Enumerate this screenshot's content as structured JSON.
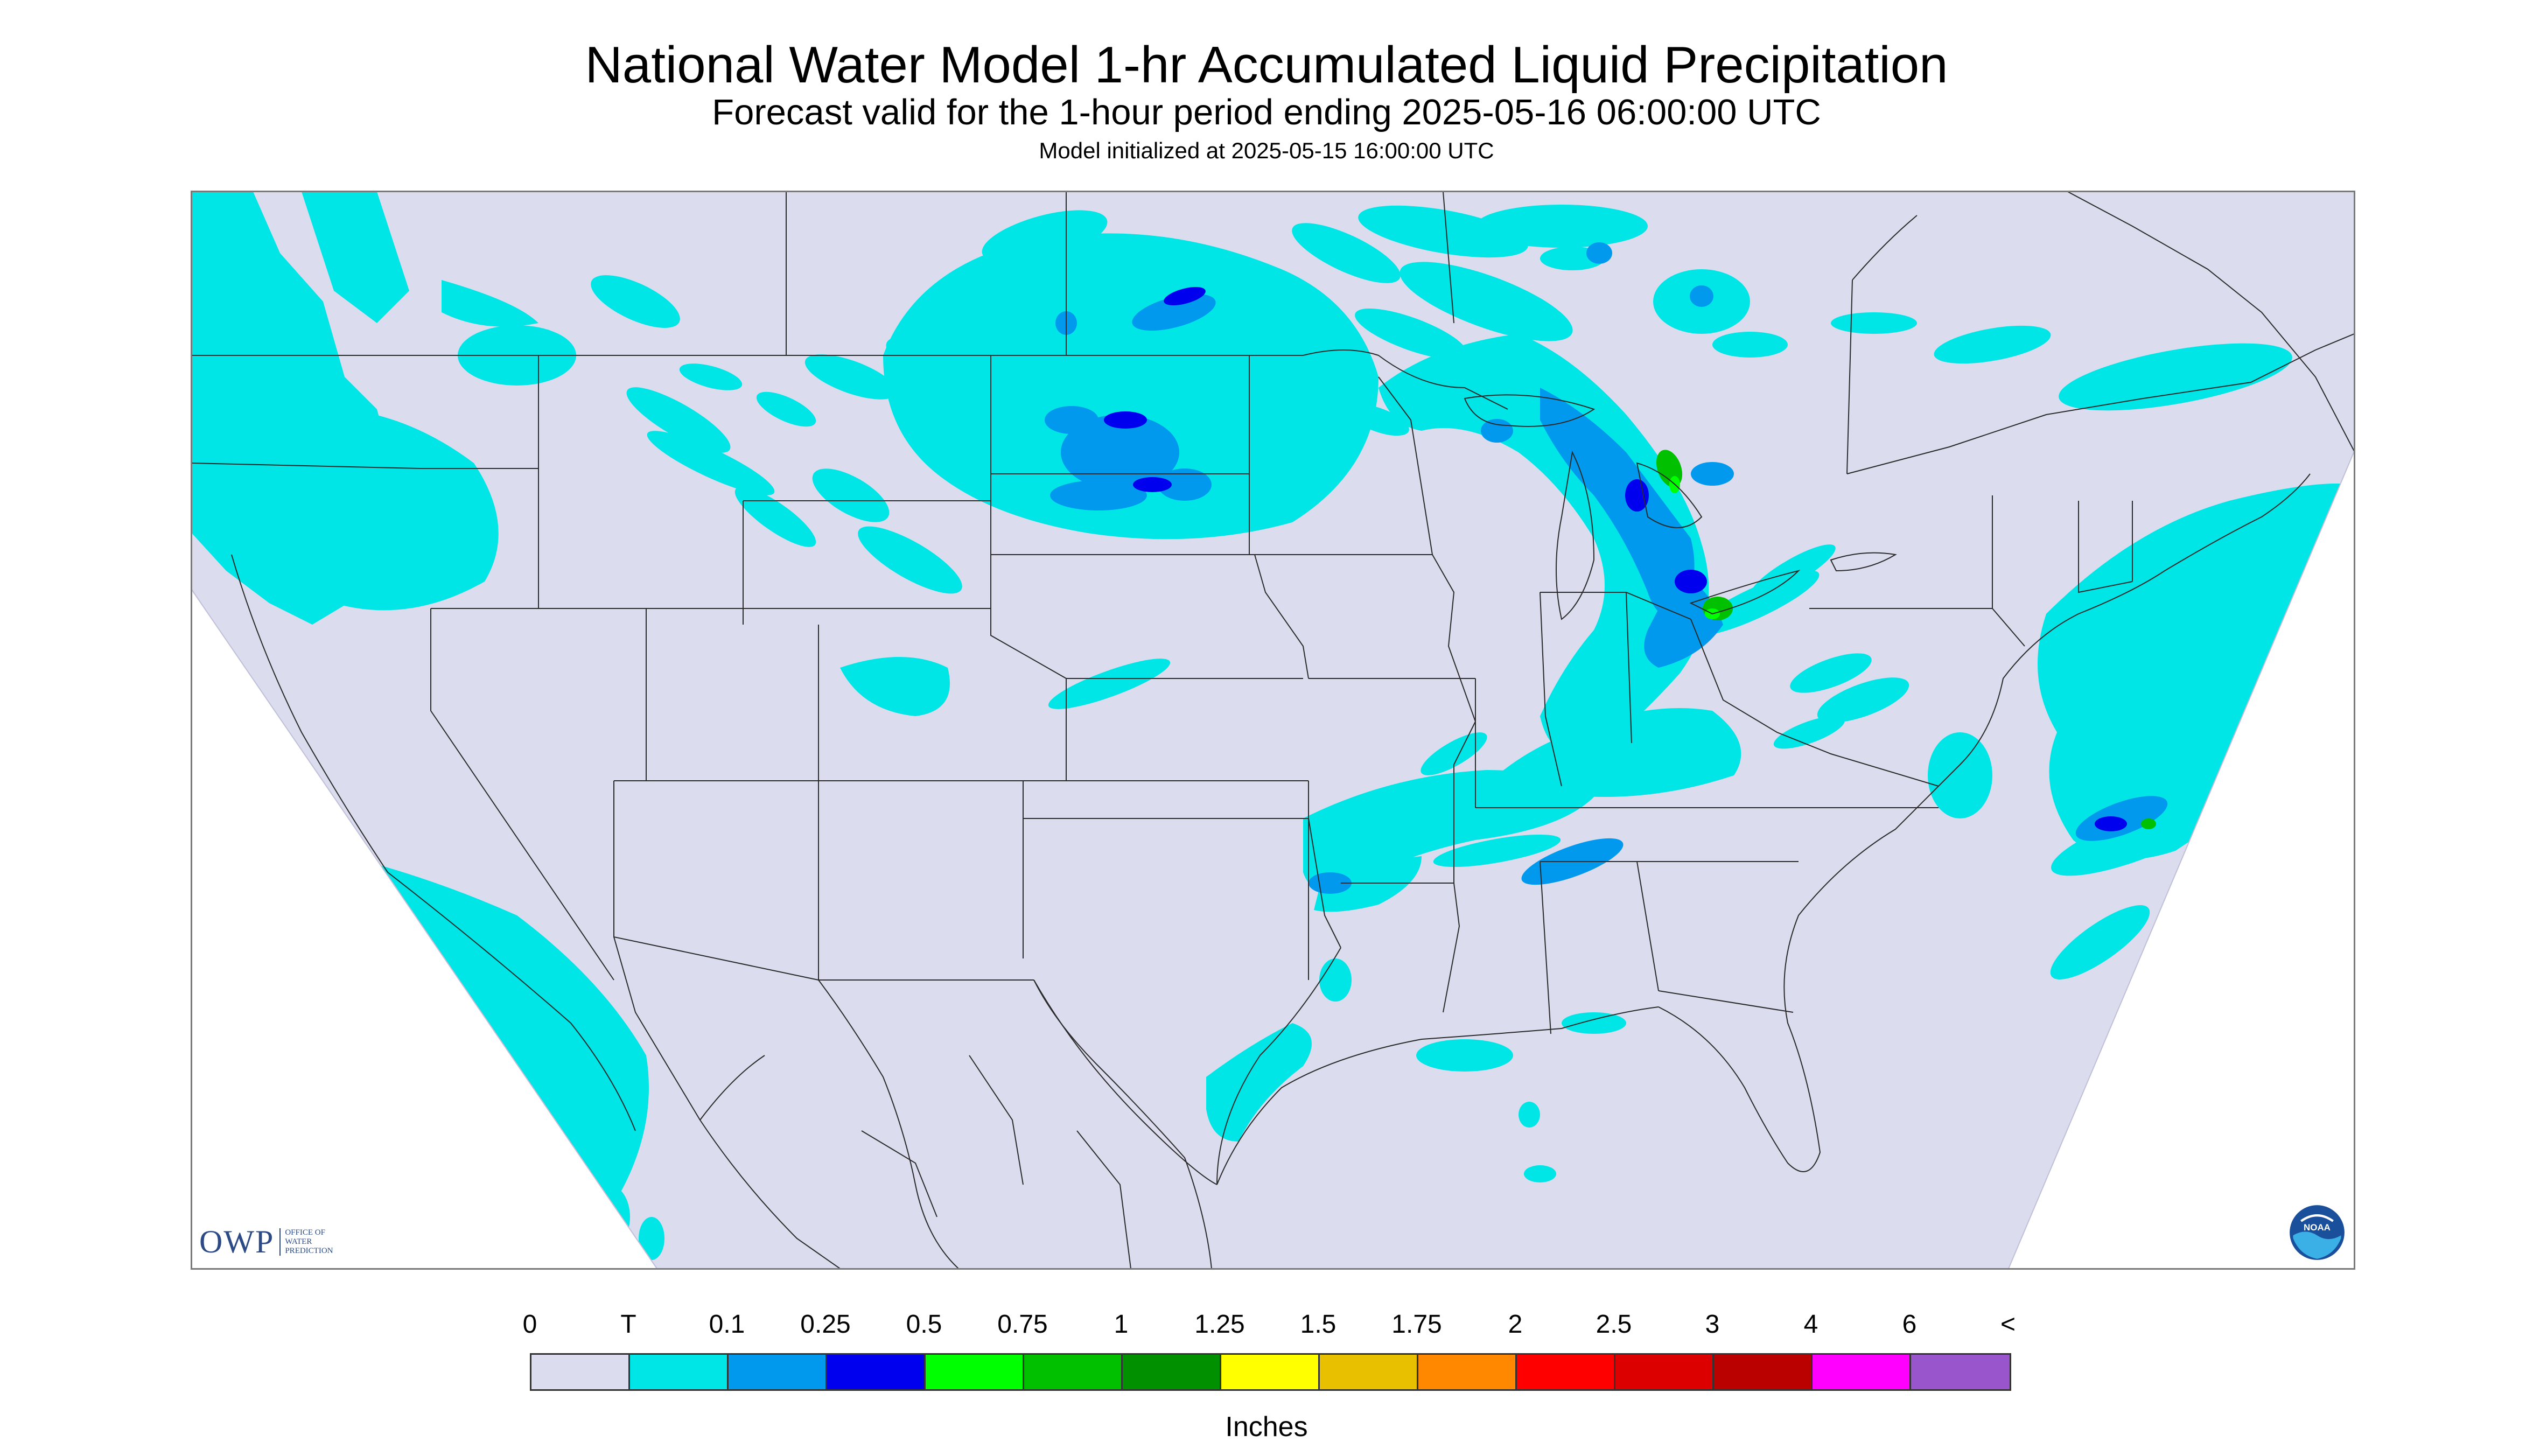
{
  "header": {
    "title": "National Water Model 1-hr Accumulated Liquid Precipitation",
    "subtitle": "Forecast valid for the 1-hour period ending 2025-05-16 06:00:00 UTC",
    "init_line": "Model initialized at 2025-05-15 16:00:00 UTC"
  },
  "legend": {
    "ticks": [
      "0",
      "T",
      "0.1",
      "0.25",
      "0.5",
      "0.75",
      "1",
      "1.25",
      "1.5",
      "1.75",
      "2",
      "2.5",
      "3",
      "4",
      "6",
      "<"
    ],
    "colors": [
      "#dcdcef",
      "#00e5e5",
      "#0099ee",
      "#0000ee",
      "#00ff00",
      "#00c000",
      "#009000",
      "#ffff00",
      "#e8c000",
      "#ff8800",
      "#ff0000",
      "#dd0000",
      "#bb0000",
      "#ff00ff",
      "#9955cc"
    ],
    "units": "Inches"
  },
  "logos": {
    "owp": {
      "mark": "OWP",
      "line1": "OFFICE OF",
      "line2": "WATER",
      "line3": "PREDICTION"
    },
    "noaa": {
      "label": "NOAA"
    }
  },
  "map": {
    "domain_fill": "#dcdcef",
    "outside_fill": "#ffffff"
  }
}
